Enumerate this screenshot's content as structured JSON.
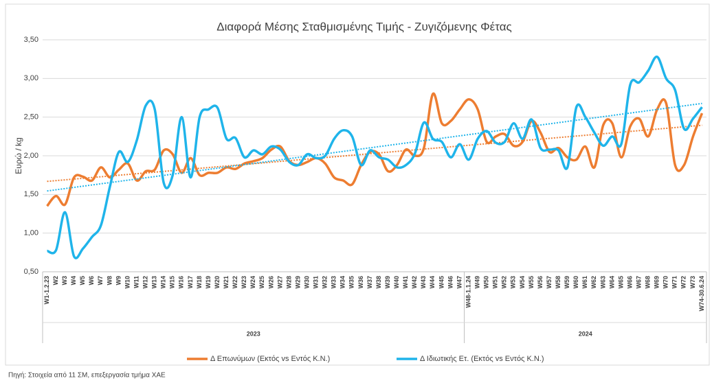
{
  "chart_data": {
    "type": "line",
    "title": "Διαφορά Μέσης Σταθμισμένης Τιμής - Ζυγιζόμενης Φέτας",
    "y_label": "Ευρώ / kg",
    "source": "Πηγή: Στοιχεία από 11 ΣΜ, επεξεργασία τμήμα ΧΑΕ",
    "categories": [
      "W1-1.2.23",
      "W2",
      "W3",
      "W4",
      "W5",
      "W6",
      "W7",
      "W8",
      "W9",
      "W10",
      "W11",
      "W12",
      "W13",
      "W14",
      "W15",
      "W16",
      "W17",
      "W18",
      "W19",
      "W20",
      "W21",
      "W22",
      "W23",
      "W24",
      "W25",
      "W26",
      "W27",
      "W28",
      "W29",
      "W30",
      "W31",
      "W32",
      "W33",
      "W34",
      "W35",
      "W36",
      "W37",
      "W38",
      "W39",
      "W40",
      "W41",
      "W42",
      "W43",
      "W44",
      "W45",
      "W46",
      "W47",
      "W48-1.1.24",
      "W49",
      "W50",
      "W51",
      "W52",
      "W53",
      "W54",
      "W55",
      "W56",
      "W57",
      "W58",
      "W59",
      "W60",
      "W61",
      "W62",
      "W63",
      "W64",
      "W65",
      "W66",
      "W67",
      "W68",
      "W69",
      "W70",
      "W71",
      "W72",
      "W73",
      "W74-30.6.24"
    ],
    "groups": [
      {
        "name": "2023",
        "count": 47
      },
      {
        "name": "2024",
        "count": 27
      }
    ],
    "series": [
      {
        "name": "Δ Επωνύμων (Εκτός vs Εντός Κ.Ν.)",
        "color": "#ed7d31",
        "trendline": true,
        "values": [
          1.35,
          1.48,
          1.37,
          1.72,
          1.73,
          1.68,
          1.85,
          1.72,
          1.82,
          1.9,
          1.68,
          1.8,
          1.82,
          2.07,
          2.02,
          1.78,
          1.97,
          1.75,
          1.78,
          1.78,
          1.85,
          1.83,
          1.9,
          1.93,
          1.97,
          2.08,
          2.12,
          1.93,
          1.88,
          1.92,
          1.97,
          1.9,
          1.72,
          1.68,
          1.63,
          1.88,
          2.05,
          2.02,
          1.8,
          1.88,
          2.08,
          2.0,
          2.1,
          2.8,
          2.42,
          2.45,
          2.6,
          2.73,
          2.6,
          2.18,
          2.25,
          2.28,
          2.13,
          2.18,
          2.45,
          2.3,
          2.05,
          2.1,
          1.98,
          1.95,
          2.12,
          1.85,
          2.4,
          2.42,
          1.98,
          2.38,
          2.48,
          2.25,
          2.6,
          2.68,
          1.88,
          1.88,
          2.25,
          2.55
        ]
      },
      {
        "name": "Δ Ιδιωτικής Ετ. (Εκτός vs Εντός Κ.Ν.)",
        "color": "#1fb4ea",
        "trendline": true,
        "values": [
          0.77,
          0.78,
          1.27,
          0.7,
          0.8,
          0.95,
          1.1,
          1.6,
          2.05,
          1.92,
          2.2,
          2.65,
          2.6,
          1.65,
          1.75,
          2.5,
          1.72,
          2.5,
          2.6,
          2.62,
          2.22,
          2.23,
          1.98,
          2.07,
          2.02,
          2.12,
          2.08,
          1.92,
          1.88,
          2.02,
          1.97,
          2.0,
          2.22,
          2.33,
          2.25,
          1.88,
          2.07,
          1.98,
          1.95,
          1.85,
          1.88,
          2.03,
          2.43,
          2.22,
          2.18,
          1.98,
          2.15,
          1.95,
          2.22,
          2.32,
          2.17,
          2.18,
          2.42,
          2.22,
          2.47,
          2.1,
          2.08,
          2.07,
          1.85,
          2.63,
          2.5,
          2.3,
          2.13,
          2.25,
          2.15,
          2.92,
          2.95,
          3.1,
          3.28,
          3.0,
          2.85,
          2.35,
          2.48,
          2.63
        ]
      }
    ],
    "ylim": [
      0.5,
      3.5
    ],
    "yticks": [
      {
        "value": 0.5,
        "label": "0,50"
      },
      {
        "value": 1,
        "label": "1,00"
      },
      {
        "value": 1.5,
        "label": "1,50"
      },
      {
        "value": 2,
        "label": "2,00"
      },
      {
        "value": 2.5,
        "label": "2,50"
      },
      {
        "value": 3,
        "label": "3,00"
      },
      {
        "value": 3.5,
        "label": "3,50"
      }
    ],
    "grid": true
  }
}
